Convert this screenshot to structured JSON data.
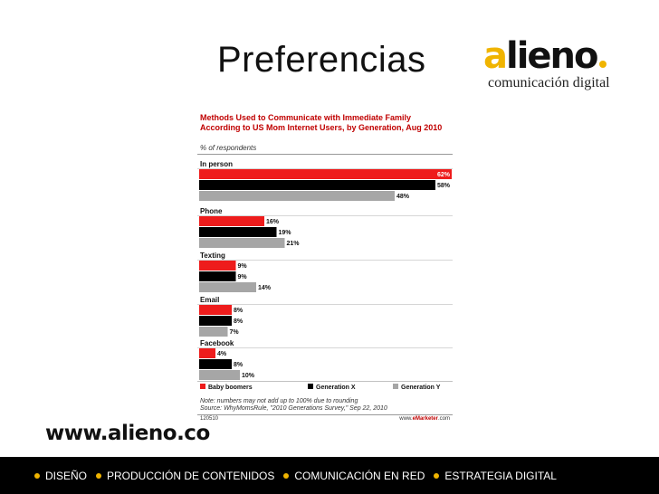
{
  "slide": {
    "title": "Preferencias",
    "website": "www.alieno.co"
  },
  "logo": {
    "word_accent": "a",
    "word_rest": "lieno",
    "tagline": "comunicación digital",
    "accent_color": "#f0b400"
  },
  "footer": {
    "items": [
      "DISEÑO",
      "PRODUCCIÓN DE CONTENIDOS",
      "COMUNICACIÓN EN RED",
      "ESTRATEGIA DIGITAL"
    ]
  },
  "chart_data": {
    "type": "bar",
    "orientation": "horizontal",
    "title": "Methods Used to Communicate with Immediate Family According to US Mom Internet Users, by Generation, Aug 2010",
    "subtitle": "% of respondents",
    "categories": [
      "In person",
      "Phone",
      "Texting",
      "Email",
      "Facebook"
    ],
    "series": [
      {
        "name": "Baby boomers",
        "color": "#ee1c1c",
        "values": [
          62,
          16,
          9,
          8,
          4
        ]
      },
      {
        "name": "Generation X",
        "color": "#000000",
        "values": [
          58,
          19,
          9,
          8,
          8
        ]
      },
      {
        "name": "Generation Y",
        "color": "#a6a6a6",
        "values": [
          48,
          21,
          14,
          7,
          10
        ]
      }
    ],
    "value_suffix": "%",
    "xlim": [
      0,
      62
    ],
    "legend_position": "bottom",
    "note": "Note: numbers may not add up to 100% due to rounding",
    "source": "Source: WhyMomsRule, \"2010 Generations Survey,\" Sep 22, 2010",
    "id": "120510",
    "site_prefix": "www.",
    "site_brand": "eMarketer",
    "site_suffix": ".com"
  }
}
